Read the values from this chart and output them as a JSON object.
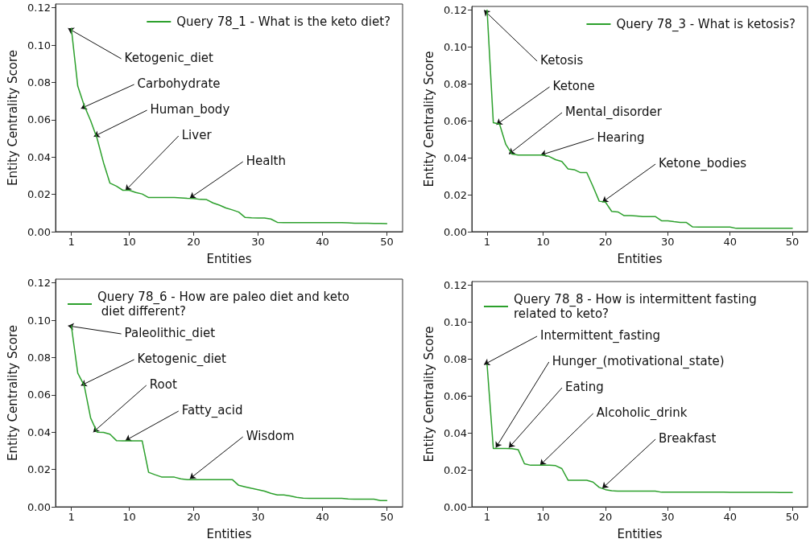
{
  "chart_data": [
    {
      "type": "line",
      "xlabel": "Entities",
      "ylabel": "Entity Centrality Score",
      "legend": "top right",
      "grid": false,
      "marker": "none",
      "line_style": "solid",
      "x": [
        1,
        2,
        3,
        4,
        5,
        6,
        7,
        8,
        9,
        10,
        11,
        12,
        13,
        14,
        15,
        16,
        17,
        18,
        19,
        20,
        21,
        22,
        23,
        24,
        25,
        26,
        27,
        28,
        29,
        30,
        31,
        32,
        33,
        34,
        35,
        36,
        37,
        38,
        39,
        40,
        41,
        42,
        43,
        44,
        45,
        46,
        47,
        48,
        49,
        50
      ],
      "series": [
        {
          "name": "Query 78_1 - What is the keto diet?",
          "color": "#2ca02c",
          "values": [
            0.109,
            0.078,
            0.0676,
            0.0595,
            0.05,
            0.037,
            0.026,
            0.0244,
            0.0222,
            0.0222,
            0.021,
            0.0202,
            0.0183,
            0.0183,
            0.0183,
            0.0183,
            0.0183,
            0.0181,
            0.0179,
            0.0178,
            0.0173,
            0.0172,
            0.0154,
            0.0142,
            0.0127,
            0.0117,
            0.0105,
            0.0076,
            0.0074,
            0.0073,
            0.0073,
            0.0068,
            0.005,
            0.0048,
            0.0048,
            0.0048,
            0.0048,
            0.0048,
            0.0048,
            0.0048,
            0.0048,
            0.0048,
            0.0048,
            0.0047,
            0.0045,
            0.0045,
            0.0045,
            0.0044,
            0.0044,
            0.0043
          ]
        }
      ],
      "xlim": [
        -1.45,
        52.45
      ],
      "xticks": [
        1,
        10,
        20,
        30,
        40,
        50
      ],
      "ylim": [
        0,
        0.122
      ],
      "yticks": [
        {
          "value": 0,
          "label": "0.00"
        },
        {
          "value": 0.02,
          "label": "0.02"
        },
        {
          "value": 0.04,
          "label": "0.04"
        },
        {
          "value": 0.06,
          "label": "0.06"
        },
        {
          "value": 0.08,
          "label": "0.08"
        },
        {
          "value": 0.1,
          "label": "0.10"
        },
        {
          "value": 0.12,
          "label": "0.12"
        }
      ],
      "annotations": [
        {
          "text": "Ketogenic_diet",
          "x": 0.5,
          "y": 0.109
        },
        {
          "text": "Carbohydrate",
          "x": 2.5,
          "y": 0.066
        },
        {
          "text": "Human_body",
          "x": 4.5,
          "y": 0.051
        },
        {
          "text": "Liver",
          "x": 9.4,
          "y": 0.022
        },
        {
          "text": "Health",
          "x": 19.4,
          "y": 0.018
        }
      ]
    },
    {
      "type": "line",
      "xlabel": "Entities",
      "ylabel": "Entity Centrality Score",
      "legend": "top right",
      "grid": false,
      "marker": "none",
      "line_style": "solid",
      "x": [
        1,
        2,
        3,
        4,
        5,
        6,
        7,
        8,
        9,
        10,
        11,
        12,
        13,
        14,
        15,
        16,
        17,
        18,
        19,
        20,
        21,
        22,
        23,
        24,
        25,
        26,
        27,
        28,
        29,
        30,
        31,
        32,
        33,
        34,
        35,
        36,
        37,
        38,
        39,
        40,
        41,
        42,
        43,
        44,
        45,
        46,
        47,
        48,
        49,
        50
      ],
      "series": [
        {
          "name": "Query 78_3 - What is ketosis?",
          "color": "#2ca02c",
          "values": [
            0.12,
            0.059,
            0.0583,
            0.0473,
            0.042,
            0.0415,
            0.0415,
            0.0415,
            0.0415,
            0.0415,
            0.0407,
            0.039,
            0.038,
            0.034,
            0.0336,
            0.032,
            0.032,
            0.0245,
            0.0165,
            0.016,
            0.011,
            0.0107,
            0.0087,
            0.0087,
            0.0085,
            0.0082,
            0.0082,
            0.0082,
            0.0059,
            0.0059,
            0.0054,
            0.005,
            0.005,
            0.0026,
            0.0025,
            0.0025,
            0.0025,
            0.0025,
            0.0025,
            0.0025,
            0.0018,
            0.0018,
            0.0018,
            0.0018,
            0.0018,
            0.0018,
            0.0018,
            0.0018,
            0.0018,
            0.0018
          ]
        }
      ],
      "xlim": [
        -1.45,
        52.45
      ],
      "xticks": [
        1,
        10,
        20,
        30,
        40,
        50
      ],
      "ylim": [
        0,
        0.122
      ],
      "yticks": [
        {
          "value": 0,
          "label": "0.00"
        },
        {
          "value": 0.02,
          "label": "0.02"
        },
        {
          "value": 0.04,
          "label": "0.04"
        },
        {
          "value": 0.06,
          "label": "0.06"
        },
        {
          "value": 0.08,
          "label": "0.08"
        },
        {
          "value": 0.1,
          "label": "0.10"
        },
        {
          "value": 0.12,
          "label": "0.12"
        }
      ],
      "annotations": [
        {
          "text": "Ketosis",
          "x": 0.5,
          "y": 0.12
        },
        {
          "text": "Ketone",
          "x": 2.5,
          "y": 0.058
        },
        {
          "text": "Mental_disorder",
          "x": 4.5,
          "y": 0.042
        },
        {
          "text": "Hearing",
          "x": 9.6,
          "y": 0.0415
        },
        {
          "text": "Ketone_bodies",
          "x": 19.5,
          "y": 0.016
        }
      ]
    },
    {
      "type": "line",
      "xlabel": "Entities",
      "ylabel": "Entity Centrality Score",
      "legend": "top",
      "grid": false,
      "marker": "none",
      "line_style": "solid",
      "x": [
        1,
        2,
        3,
        4,
        5,
        6,
        7,
        8,
        9,
        10,
        11,
        12,
        13,
        14,
        15,
        16,
        17,
        18,
        19,
        20,
        21,
        22,
        23,
        24,
        25,
        26,
        27,
        28,
        29,
        30,
        31,
        32,
        33,
        34,
        35,
        36,
        37,
        38,
        39,
        40,
        41,
        42,
        43,
        44,
        45,
        46,
        47,
        48,
        49,
        50
      ],
      "series": [
        {
          "name": "Query 78_6 - How are paleo diet and keto diet different?",
          "color": "#2ca02c",
          "values": [
            0.097,
            0.0716,
            0.065,
            0.0476,
            0.04,
            0.0399,
            0.0389,
            0.0355,
            0.0354,
            0.0354,
            0.0354,
            0.0354,
            0.0185,
            0.0172,
            0.016,
            0.016,
            0.0159,
            0.015,
            0.0146,
            0.0146,
            0.0146,
            0.0146,
            0.0146,
            0.0146,
            0.0146,
            0.0146,
            0.0115,
            0.0107,
            0.0099,
            0.0092,
            0.0084,
            0.0072,
            0.0064,
            0.0064,
            0.0058,
            0.0051,
            0.0046,
            0.0045,
            0.0045,
            0.0045,
            0.0045,
            0.0045,
            0.0045,
            0.0042,
            0.0041,
            0.0041,
            0.0041,
            0.0041,
            0.0033,
            0.0033
          ]
        }
      ],
      "xlim": [
        -1.45,
        52.45
      ],
      "xticks": [
        1,
        10,
        20,
        30,
        40,
        50
      ],
      "ylim": [
        0,
        0.122
      ],
      "yticks": [
        {
          "value": 0,
          "label": "0.00"
        },
        {
          "value": 0.02,
          "label": "0.02"
        },
        {
          "value": 0.04,
          "label": "0.04"
        },
        {
          "value": 0.06,
          "label": "0.06"
        },
        {
          "value": 0.08,
          "label": "0.08"
        },
        {
          "value": 0.1,
          "label": "0.10"
        },
        {
          "value": 0.12,
          "label": "0.12"
        }
      ],
      "annotations": [
        {
          "text": "Paleolithic_diet",
          "x": 0.5,
          "y": 0.097
        },
        {
          "text": "Ketogenic_diet",
          "x": 2.5,
          "y": 0.065
        },
        {
          "text": "Root",
          "x": 4.4,
          "y": 0.04
        },
        {
          "text": "Fatty_acid",
          "x": 9.4,
          "y": 0.0355
        },
        {
          "text": "Wisdom",
          "x": 19.4,
          "y": 0.015
        }
      ]
    },
    {
      "type": "line",
      "xlabel": "Entities",
      "ylabel": "Entity Centrality Score",
      "legend": "top",
      "grid": false,
      "marker": "none",
      "line_style": "solid",
      "x": [
        1,
        2,
        3,
        4,
        5,
        6,
        7,
        8,
        9,
        10,
        11,
        12,
        13,
        14,
        15,
        16,
        17,
        18,
        19,
        20,
        21,
        22,
        23,
        24,
        25,
        26,
        27,
        28,
        29,
        30,
        31,
        32,
        33,
        34,
        35,
        36,
        37,
        38,
        39,
        40,
        41,
        42,
        43,
        44,
        45,
        46,
        47,
        48,
        49,
        50
      ],
      "series": [
        {
          "name": "Query 78_8 - How is intermittent fasting related to keto?",
          "color": "#2ca02c",
          "values": [
            0.077,
            0.0316,
            0.0316,
            0.0316,
            0.0315,
            0.0309,
            0.0233,
            0.0225,
            0.0225,
            0.0225,
            0.0225,
            0.0223,
            0.0207,
            0.0144,
            0.0144,
            0.0144,
            0.0144,
            0.0134,
            0.0105,
            0.0093,
            0.0087,
            0.0085,
            0.0085,
            0.0085,
            0.0085,
            0.0085,
            0.0085,
            0.0085,
            0.0079,
            0.0079,
            0.0079,
            0.0079,
            0.0079,
            0.0079,
            0.0079,
            0.0079,
            0.0079,
            0.0079,
            0.0079,
            0.0078,
            0.0078,
            0.0078,
            0.0078,
            0.0078,
            0.0078,
            0.0078,
            0.0078,
            0.0077,
            0.0077,
            0.0077
          ]
        }
      ],
      "xlim": [
        -1.45,
        52.45
      ],
      "xticks": [
        1,
        10,
        20,
        30,
        40,
        50
      ],
      "ylim": [
        0,
        0.122
      ],
      "yticks": [
        {
          "value": 0,
          "label": "0.00"
        },
        {
          "value": 0.02,
          "label": "0.02"
        },
        {
          "value": 0.04,
          "label": "0.04"
        },
        {
          "value": 0.06,
          "label": "0.06"
        },
        {
          "value": 0.08,
          "label": "0.08"
        },
        {
          "value": 0.1,
          "label": "0.10"
        },
        {
          "value": 0.12,
          "label": "0.12"
        }
      ],
      "annotations": [
        {
          "text": "Intermittent_fasting",
          "x": 0.5,
          "y": 0.077
        },
        {
          "text": "Hunger_(motivational_state)",
          "x": 2.4,
          "y": 0.032
        },
        {
          "text": "Eating",
          "x": 4.5,
          "y": 0.032
        },
        {
          "text": "Alcoholic_drink",
          "x": 9.5,
          "y": 0.0225
        },
        {
          "text": "Breakfast",
          "x": 19.5,
          "y": 0.01
        }
      ]
    }
  ]
}
